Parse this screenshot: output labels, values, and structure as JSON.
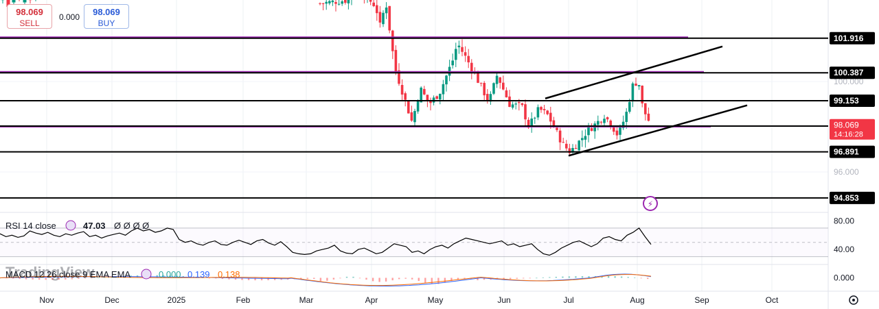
{
  "trade": {
    "sell_price": "98.069",
    "sell_label": "SELL",
    "spread": "0.000",
    "buy_price": "98.069",
    "buy_label": "BUY"
  },
  "branding": "TradingView",
  "colors": {
    "bull": "#089981",
    "bear": "#f23645",
    "purple_line": "#9c27b0",
    "level_line": "#000000",
    "current_price": "#f23645",
    "rsi_line": "#000000",
    "macd_line": "#2962ff",
    "signal_line": "#ff6d00"
  },
  "chart_data": [
    {
      "type": "candlestick",
      "title": "",
      "x": [
        "Nov",
        "Dec",
        "2025",
        "Feb",
        "Mar",
        "Apr",
        "May",
        "Jun",
        "Jul",
        "Aug",
        "Sep",
        "Oct"
      ],
      "y_ticks": [
        "100.000",
        "98.000",
        "96.000"
      ],
      "ylim": [
        94.0,
        104.0
      ],
      "current_price": {
        "value": "98.069",
        "countdown": "14:16:28"
      },
      "horizontal_levels": [
        {
          "value": "101.916",
          "color": "purple+black"
        },
        {
          "value": "100.387",
          "color": "purple+black"
        },
        {
          "value": "99.153",
          "color": "black"
        },
        {
          "value": "98.030",
          "color": "black+purple"
        },
        {
          "value": "96.891",
          "color": "black"
        },
        {
          "value": "94.853",
          "color": "black"
        }
      ],
      "channel": {
        "type": "ascending",
        "upper_from": [
          "Jun",
          99.25
        ],
        "upper_to": [
          "Sep",
          101.55
        ],
        "lower_from": [
          "Jul",
          96.72
        ],
        "lower_to": [
          "Sep",
          98.95
        ]
      },
      "series_segments": [
        {
          "name": "",
          "period": "Mar (late) - Aug",
          "close_path": [
            {
              "x": "Mar",
              "y": 103.6
            },
            {
              "x": "Apr",
              "y": 102.9
            },
            {
              "x": "Apr",
              "y": 100.5
            },
            {
              "x": "Apr",
              "y": 98.3
            },
            {
              "x": "May",
              "y": 99.7
            },
            {
              "x": "May",
              "y": 101.6
            },
            {
              "x": "May",
              "y": 99.5
            },
            {
              "x": "Jun",
              "y": 99.0
            },
            {
              "x": "Jun",
              "y": 98.0
            },
            {
              "x": "Jul",
              "y": 96.9
            },
            {
              "x": "Jul",
              "y": 97.7
            },
            {
              "x": "Jul",
              "y": 98.3
            },
            {
              "x": "Aug",
              "y": 100.0
            },
            {
              "x": "Aug",
              "y": 98.07
            }
          ]
        }
      ]
    },
    {
      "type": "line",
      "title": "RSI 14 close",
      "legend_value": "47.03",
      "legend_extra": "Ø Ø Ø Ø",
      "y_ticks": [
        "80.00",
        "40.00"
      ],
      "ylim": [
        20,
        90
      ],
      "bands": [
        70,
        50,
        30
      ],
      "values": [
        62,
        58,
        60,
        57,
        59,
        66,
        63,
        61,
        64,
        60,
        58,
        62,
        60,
        63,
        65,
        58,
        60,
        56,
        59,
        61,
        63,
        60,
        66,
        70,
        66,
        68,
        64,
        66,
        70,
        68,
        54,
        50,
        52,
        48,
        46,
        50,
        52,
        47,
        46,
        50,
        53,
        50,
        47,
        52,
        54,
        49,
        46,
        51,
        44,
        36,
        34,
        33,
        34,
        38,
        40,
        42,
        46,
        38,
        35,
        34,
        40,
        42,
        38,
        34,
        36,
        42,
        48,
        46,
        44,
        36,
        38,
        34,
        40,
        44,
        46,
        42,
        48,
        52,
        56,
        54,
        52,
        50,
        48,
        50,
        52,
        46,
        48,
        44,
        46,
        48,
        40,
        34,
        32,
        36,
        42,
        46,
        50,
        52,
        48,
        44,
        48,
        56,
        58,
        54,
        52,
        60,
        64,
        70,
        58,
        47
      ]
    },
    {
      "type": "bar+line",
      "title": "MACD 12 26 close 9 EMA EMA",
      "legend_values": [
        "0.000",
        "0.139",
        "0.138"
      ],
      "y_ticks": [
        "0.000"
      ],
      "ylim": [
        -0.8,
        0.8
      ]
    }
  ]
}
